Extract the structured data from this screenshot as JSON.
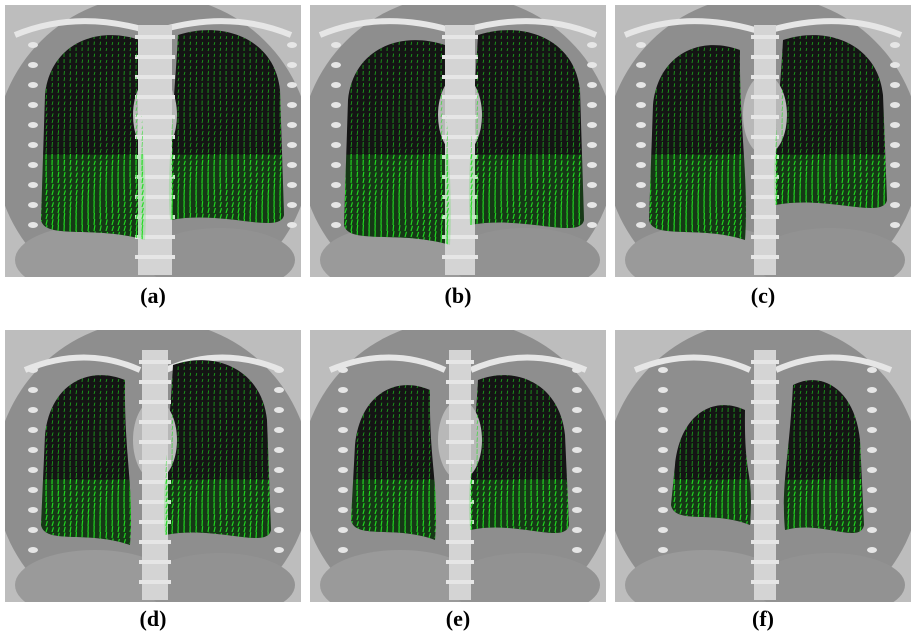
{
  "figure": {
    "panels": [
      {
        "label": "(a)",
        "icon": "ct-lung-coronal-slice-icon"
      },
      {
        "label": "(b)",
        "icon": "ct-lung-coronal-slice-icon"
      },
      {
        "label": "(c)",
        "icon": "ct-lung-coronal-slice-icon"
      },
      {
        "label": "(d)",
        "icon": "ct-lung-coronal-slice-icon"
      },
      {
        "label": "(e)",
        "icon": "ct-lung-coronal-slice-icon"
      },
      {
        "label": "(f)",
        "icon": "ct-lung-coronal-slice-icon"
      }
    ],
    "colors": {
      "vector_field": "#22dd22",
      "lung_dark": "#141414",
      "tissue": "#8e8e8e",
      "bone": "#e6e6e6",
      "background": "#ffffff"
    }
  }
}
